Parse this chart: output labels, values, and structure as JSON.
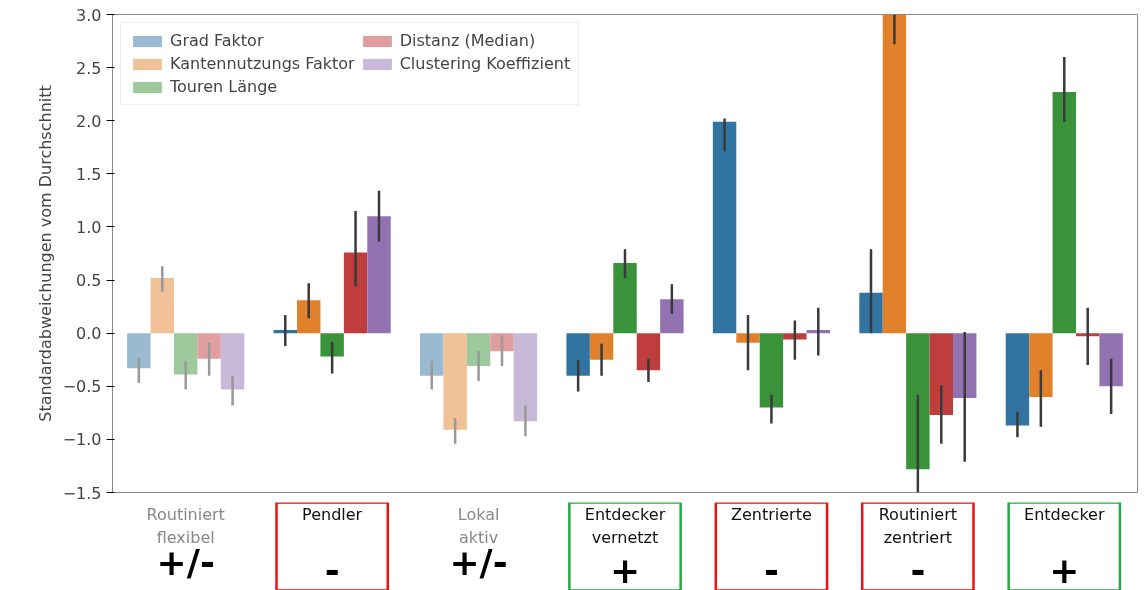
{
  "chart_data": {
    "type": "bar",
    "ylabel": "Standardabweichungen vom Durchschnitt",
    "categories": [
      "Routiniert\nflexibel",
      "Pendler",
      "Lokal\naktiv",
      "Entdecker\nvernetzt",
      "Zentrierte",
      "Routiniert\nzentriert",
      "Entdecker"
    ],
    "ylim": [
      -1.5,
      3.0
    ],
    "yticks": [
      {
        "value": -1.5,
        "label": "−1.5"
      },
      {
        "value": -1.0,
        "label": "−1.0"
      },
      {
        "value": -0.5,
        "label": "−0.5"
      },
      {
        "value": 0,
        "label": "0.0"
      },
      {
        "value": 0.5,
        "label": "0.5"
      },
      {
        "value": 1.0,
        "label": "1.0"
      },
      {
        "value": 1.5,
        "label": "1.5"
      },
      {
        "value": 2.0,
        "label": "2.0"
      },
      {
        "value": 2.5,
        "label": "2.5"
      },
      {
        "value": 3.0,
        "label": "3.0"
      }
    ],
    "legend": "top left",
    "grid": false,
    "series": [
      {
        "name": "Grad Faktor",
        "color": "#3274a1",
        "colors": [
          "#99bad0",
          "#3274a1",
          "#99bad0",
          "#3274a1",
          "#3274a1",
          "#3274a1",
          "#3274a1"
        ],
        "values": [
          -0.33,
          0.03,
          -0.4,
          -0.4,
          1.99,
          0.38,
          -0.87
        ],
        "errors": [
          [
            -0.47,
            -0.23
          ],
          [
            -0.12,
            0.17
          ],
          [
            -0.53,
            -0.26
          ],
          [
            -0.55,
            -0.25
          ],
          [
            1.71,
            2.02
          ],
          [
            0.0,
            0.79
          ],
          [
            -0.98,
            -0.74
          ]
        ]
      },
      {
        "name": "Kantennutzungs Faktor",
        "color": "#e1812c",
        "colors": [
          "#f0c096",
          "#e1812c",
          "#f0c096",
          "#e1812c",
          "#e1812c",
          "#e1812c",
          "#e1812c"
        ],
        "values": [
          0.52,
          0.31,
          -0.91,
          -0.25,
          -0.09,
          3.0,
          -0.6
        ],
        "errors": [
          [
            0.39,
            0.63
          ],
          [
            0.14,
            0.47
          ],
          [
            -1.04,
            -0.8
          ],
          [
            -0.4,
            -0.1
          ],
          [
            -0.35,
            0.17
          ],
          [
            2.72,
            3.0
          ],
          [
            -0.88,
            -0.35
          ]
        ]
      },
      {
        "name": "Touren Länge",
        "color": "#3a923a",
        "colors": [
          "#9dc99d",
          "#3a923a",
          "#9dc99d",
          "#3a923a",
          "#3a923a",
          "#3a923a",
          "#3a923a"
        ],
        "values": [
          -0.39,
          -0.22,
          -0.31,
          0.66,
          -0.7,
          -1.28,
          2.27
        ],
        "errors": [
          [
            -0.53,
            -0.26
          ],
          [
            -0.38,
            -0.08
          ],
          [
            -0.45,
            -0.17
          ],
          [
            0.52,
            0.79
          ],
          [
            -0.85,
            -0.58
          ],
          [
            -1.5,
            -0.58
          ],
          [
            1.99,
            2.6
          ]
        ]
      },
      {
        "name": "Distanz (Median)",
        "color": "#c03d3e",
        "colors": [
          "#e09e9f",
          "#c03d3e",
          "#e09e9f",
          "#c03d3e",
          "#c03d3e",
          "#c03d3e",
          "#c03d3e"
        ],
        "values": [
          -0.24,
          0.76,
          -0.17,
          -0.35,
          -0.06,
          -0.77,
          -0.03
        ],
        "errors": [
          [
            -0.4,
            -0.09
          ],
          [
            0.44,
            1.15
          ],
          [
            -0.31,
            -0.02
          ],
          [
            -0.46,
            -0.24
          ],
          [
            -0.25,
            0.12
          ],
          [
            -1.04,
            -0.49
          ],
          [
            -0.3,
            0.24
          ]
        ]
      },
      {
        "name": "Clustering Koeffizient",
        "color": "#9372b2",
        "colors": [
          "#c9b9d9",
          "#9372b2",
          "#c9b9d9",
          "#9372b2",
          "#9372b2",
          "#9372b2",
          "#9372b2"
        ],
        "values": [
          -0.53,
          1.1,
          -0.83,
          0.32,
          0.03,
          -0.61,
          -0.5
        ],
        "errors": [
          [
            -0.68,
            -0.4
          ],
          [
            0.86,
            1.34
          ],
          [
            -0.97,
            -0.68
          ],
          [
            0.18,
            0.46
          ],
          [
            -0.21,
            0.24
          ],
          [
            -1.21,
            0.01
          ],
          [
            -0.76,
            -0.24
          ]
        ]
      }
    ],
    "annotations": [
      "+/-",
      "-",
      "+/-",
      "+",
      "-",
      "-",
      "+"
    ]
  }
}
